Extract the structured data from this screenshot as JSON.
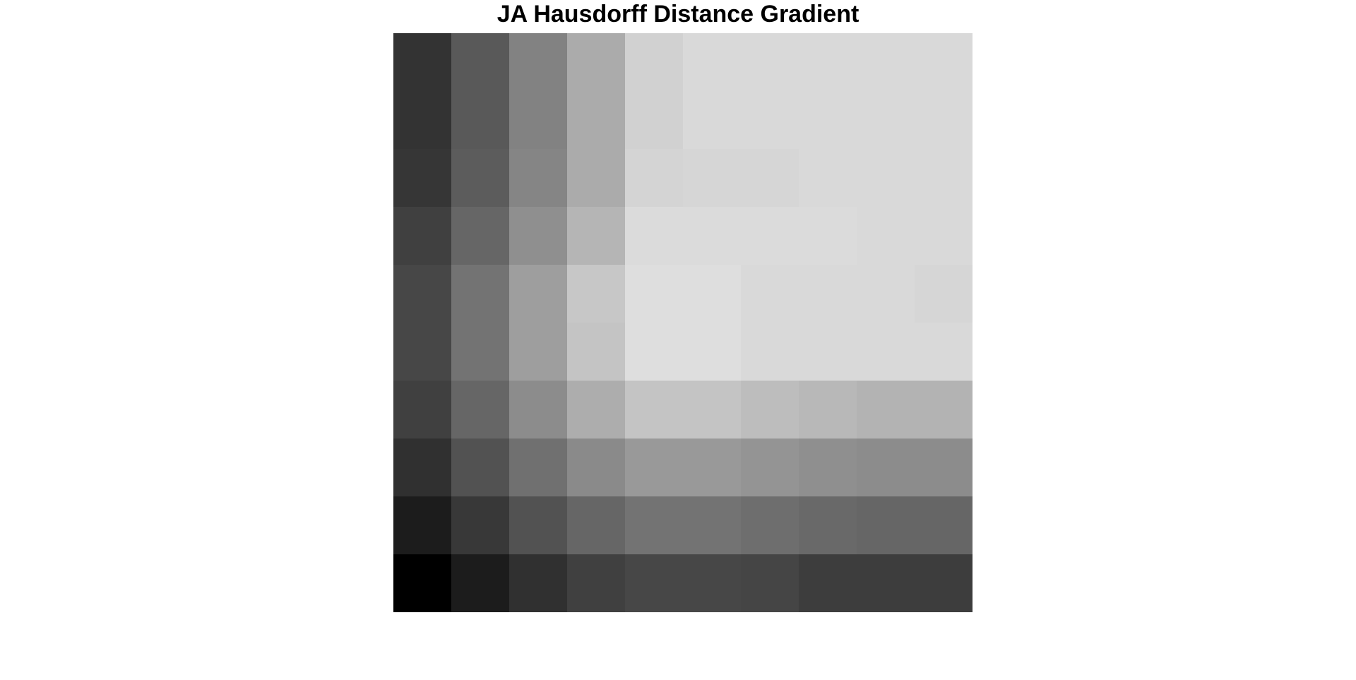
{
  "chart_data": {
    "type": "heatmap",
    "title": "JA Hausdorff Distance Gradient",
    "xlabel": "",
    "ylabel": "",
    "colormap": "gray",
    "grid": false,
    "colorbar": false,
    "rows": 10,
    "cols": 10,
    "values": [
      [
        0.2,
        0.35,
        0.51,
        0.67,
        0.82,
        0.85,
        0.85,
        0.85,
        0.85,
        0.85
      ],
      [
        0.2,
        0.35,
        0.51,
        0.67,
        0.82,
        0.85,
        0.85,
        0.85,
        0.85,
        0.85
      ],
      [
        0.21,
        0.36,
        0.52,
        0.67,
        0.83,
        0.84,
        0.84,
        0.85,
        0.85,
        0.85
      ],
      [
        0.25,
        0.4,
        0.56,
        0.71,
        0.86,
        0.86,
        0.86,
        0.86,
        0.85,
        0.85
      ],
      [
        0.28,
        0.45,
        0.62,
        0.78,
        0.87,
        0.87,
        0.85,
        0.85,
        0.85,
        0.84
      ],
      [
        0.28,
        0.45,
        0.62,
        0.77,
        0.87,
        0.87,
        0.85,
        0.85,
        0.85,
        0.85
      ],
      [
        0.25,
        0.4,
        0.55,
        0.68,
        0.77,
        0.77,
        0.74,
        0.72,
        0.7,
        0.7
      ],
      [
        0.19,
        0.32,
        0.44,
        0.54,
        0.6,
        0.6,
        0.58,
        0.56,
        0.55,
        0.55
      ],
      [
        0.11,
        0.22,
        0.32,
        0.4,
        0.45,
        0.45,
        0.43,
        0.41,
        0.4,
        0.4
      ],
      [
        0.0,
        0.11,
        0.19,
        0.25,
        0.28,
        0.28,
        0.27,
        0.24,
        0.24,
        0.24
      ]
    ]
  }
}
